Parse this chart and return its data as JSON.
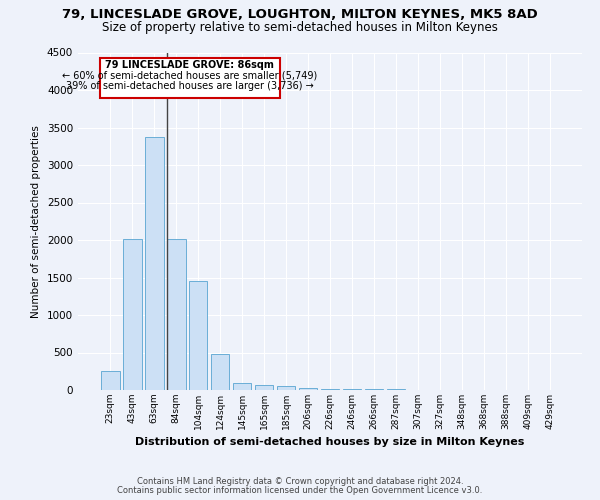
{
  "title1": "79, LINCESLADE GROVE, LOUGHTON, MILTON KEYNES, MK5 8AD",
  "title2": "Size of property relative to semi-detached houses in Milton Keynes",
  "xlabel": "Distribution of semi-detached houses by size in Milton Keynes",
  "ylabel": "Number of semi-detached properties",
  "categories": [
    "23sqm",
    "43sqm",
    "63sqm",
    "84sqm",
    "104sqm",
    "124sqm",
    "145sqm",
    "165sqm",
    "185sqm",
    "206sqm",
    "226sqm",
    "246sqm",
    "266sqm",
    "287sqm",
    "307sqm",
    "327sqm",
    "348sqm",
    "368sqm",
    "388sqm",
    "409sqm",
    "429sqm"
  ],
  "values": [
    250,
    2020,
    3370,
    2020,
    1460,
    480,
    100,
    65,
    55,
    30,
    20,
    15,
    10,
    8,
    5,
    4,
    3,
    2,
    2,
    1,
    1
  ],
  "bar_color": "#cce0f5",
  "bar_edge_color": "#6aaed6",
  "annotation_text1": "79 LINCESLADE GROVE: 86sqm",
  "annotation_text2": "← 60% of semi-detached houses are smaller (5,749)",
  "annotation_text3": "39% of semi-detached houses are larger (3,736) →",
  "box_color": "#cc0000",
  "ylim": [
    0,
    4500
  ],
  "yticks": [
    0,
    500,
    1000,
    1500,
    2000,
    2500,
    3000,
    3500,
    4000,
    4500
  ],
  "footer1": "Contains HM Land Registry data © Crown copyright and database right 2024.",
  "footer2": "Contains public sector information licensed under the Open Government Licence v3.0.",
  "bg_color": "#eef2fa",
  "grid_color": "#ffffff",
  "title1_fontsize": 9.5,
  "title2_fontsize": 8.5
}
